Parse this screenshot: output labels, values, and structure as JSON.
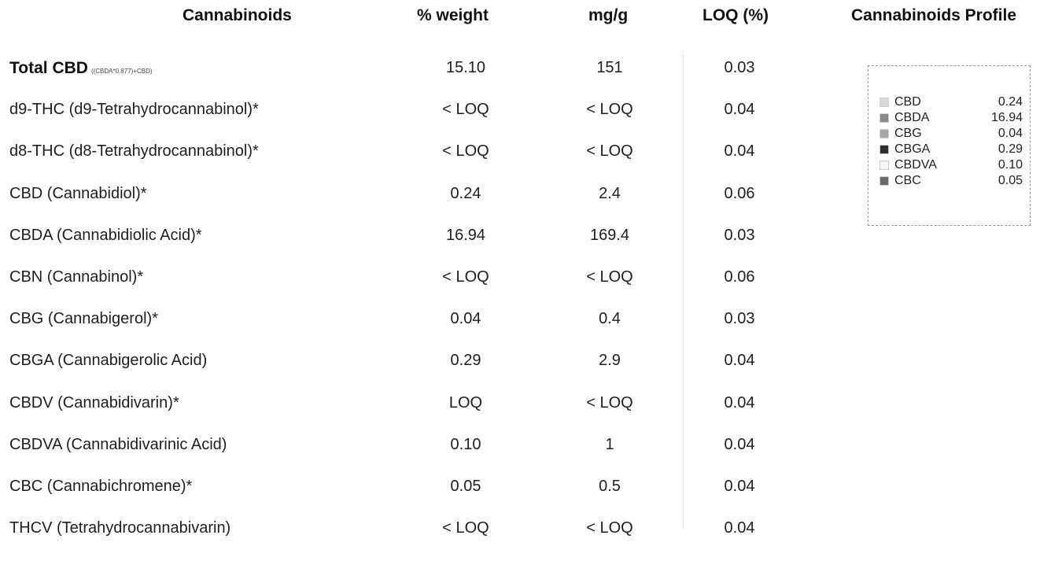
{
  "headers": {
    "cannabinoids": "Cannabinoids",
    "weight": "% weight",
    "mgg": "mg/g",
    "loq": "LOQ (%)",
    "profile": "Cannabinoids Profile"
  },
  "rows": [
    {
      "name": "Total CBD",
      "formula": "((CBDA*0.877)+CBD)",
      "pct": "15.10",
      "mg": "151",
      "loq": "0.03"
    },
    {
      "name": "d9-THC (d9-Tetrahydrocannabinol)*",
      "pct": "< LOQ",
      "mg": "< LOQ",
      "loq": "0.04"
    },
    {
      "name": "d8-THC (d8-Tetrahydrocannabinol)*",
      "pct": "< LOQ",
      "mg": "< LOQ",
      "loq": "0.04"
    },
    {
      "name": "CBD (Cannabidiol)*",
      "pct": "0.24",
      "mg": "2.4",
      "loq": "0.06"
    },
    {
      "name": "CBDA (Cannabidiolic Acid)*",
      "pct": "16.94",
      "mg": "169.4",
      "loq": "0.03"
    },
    {
      "name": "CBN (Cannabinol)*",
      "pct": "< LOQ",
      "mg": "< LOQ",
      "loq": "0.06"
    },
    {
      "name": "CBG (Cannabigerol)*",
      "pct": "0.04",
      "mg": "0.4",
      "loq": "0.03"
    },
    {
      "name": "CBGA (Cannabigerolic Acid)",
      "pct": "0.29",
      "mg": "2.9",
      "loq": "0.04"
    },
    {
      "name": "CBDV (Cannabidivarin)*",
      "pct": "LOQ",
      "mg": "< LOQ",
      "loq": "0.04"
    },
    {
      "name": "CBDVA (Cannabidivarinic Acid)",
      "pct": "0.10",
      "mg": "1",
      "loq": "0.04"
    },
    {
      "name": "CBC (Cannabichromene)*",
      "pct": "0.05",
      "mg": "0.5",
      "loq": "0.04"
    },
    {
      "name": "THCV (Tetrahydrocannabivarin)",
      "pct": "< LOQ",
      "mg": "< LOQ",
      "loq": "0.04"
    }
  ],
  "legend": [
    {
      "label": "CBD",
      "value": "0.24",
      "color": "#d9d9d9"
    },
    {
      "label": "CBDA",
      "value": "16.94",
      "color": "#8a8a8a"
    },
    {
      "label": "CBG",
      "value": "0.04",
      "color": "#a8a8a8"
    },
    {
      "label": "CBGA",
      "value": "0.29",
      "color": "#2e2e2e"
    },
    {
      "label": "CBDVA",
      "value": "0.10",
      "color": "#f6f6f6"
    },
    {
      "label": "CBC",
      "value": "0.05",
      "color": "#6a6a6a"
    }
  ]
}
